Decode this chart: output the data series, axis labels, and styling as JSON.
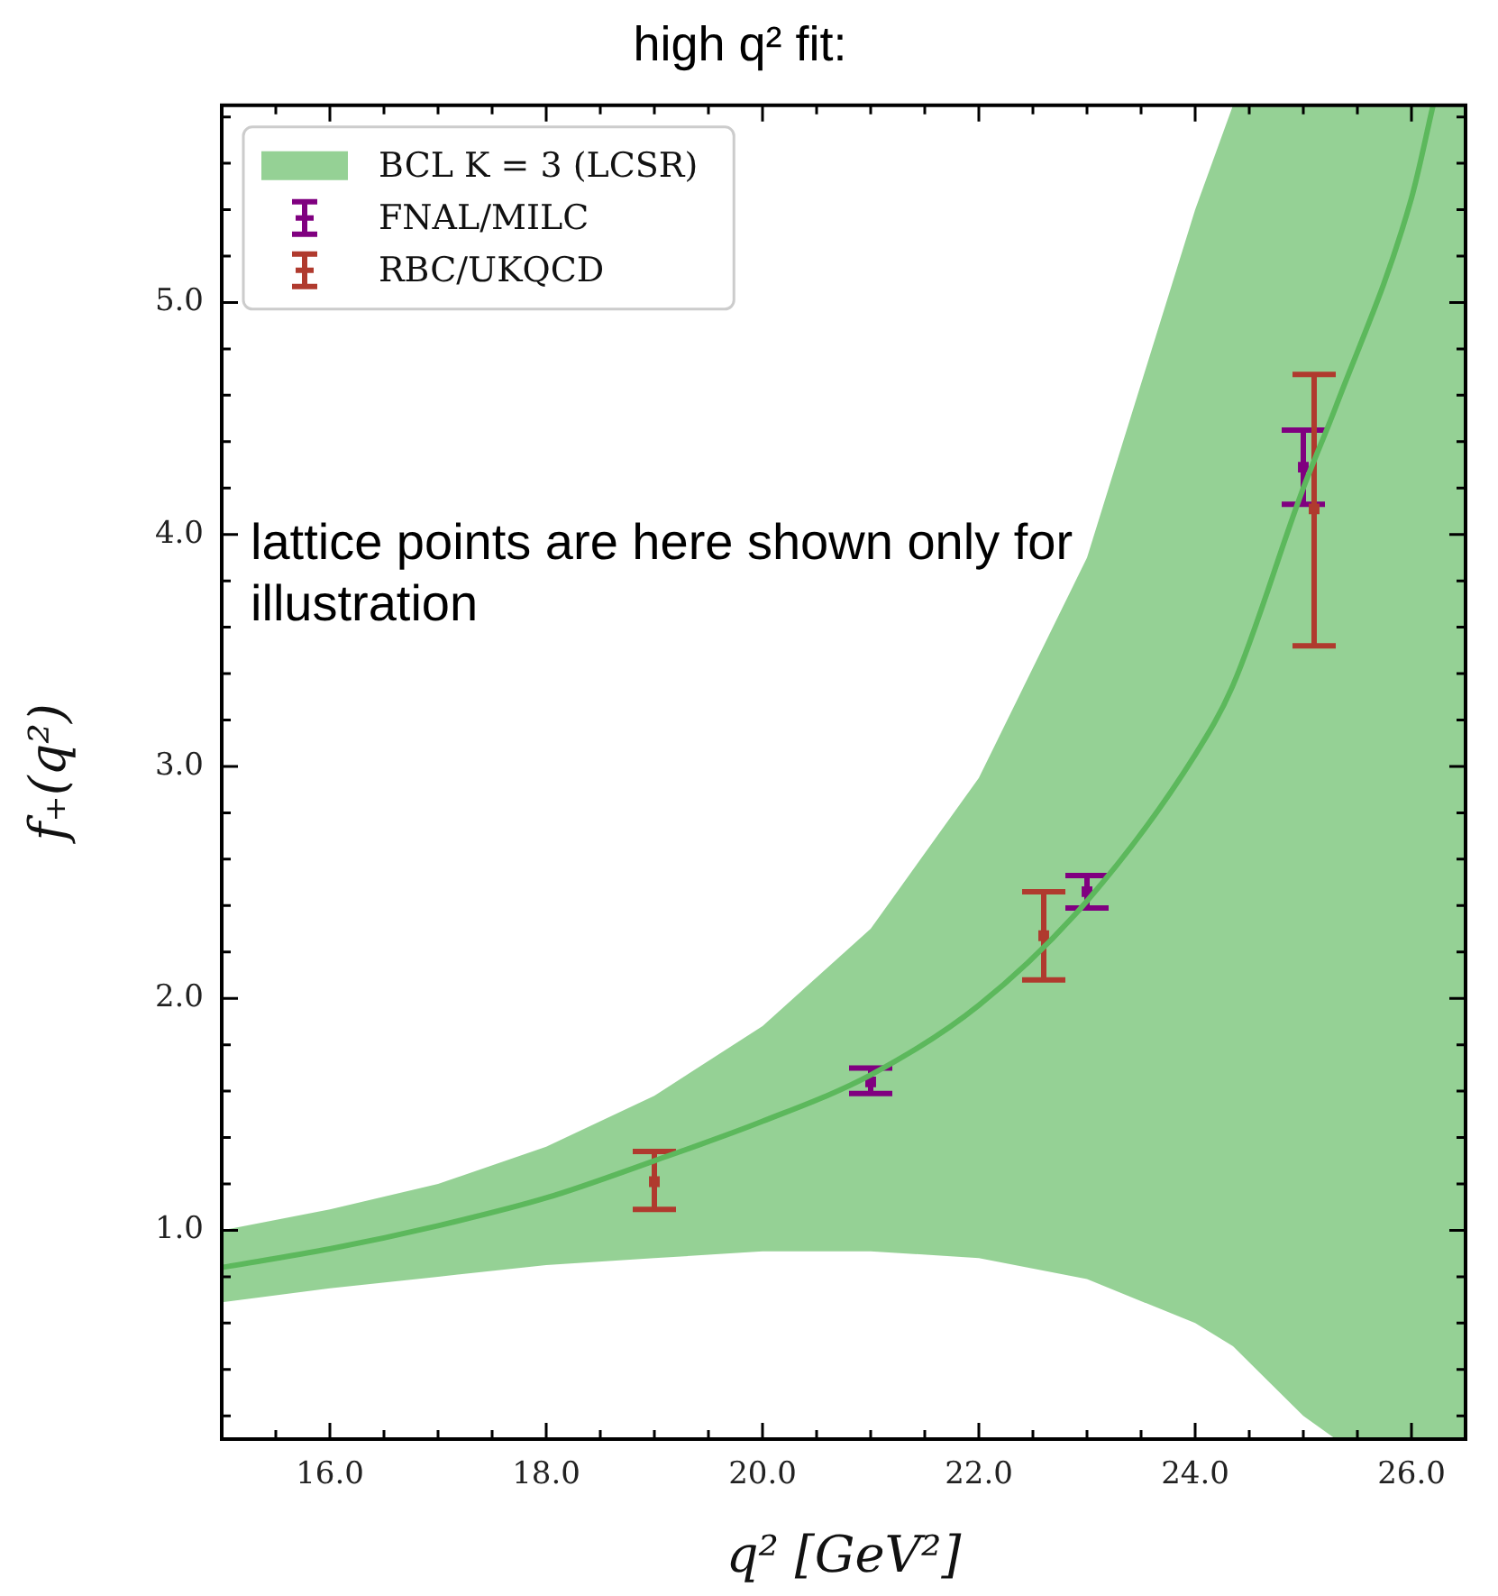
{
  "chart_data": {
    "type": "line",
    "title": "high q² fit:",
    "xlabel": "q² [GeV²]",
    "ylabel": "f₊(q²)",
    "xlim": [
      15.0,
      26.5
    ],
    "ylim": [
      0.1,
      5.85
    ],
    "xticks": [
      {
        "value": 15.5,
        "label": null
      },
      {
        "value": 16,
        "label": "16.0"
      },
      {
        "value": 16.5,
        "label": null
      },
      {
        "value": 17,
        "label": null
      },
      {
        "value": 17.5,
        "label": null
      },
      {
        "value": 18,
        "label": "18.0"
      },
      {
        "value": 18.5,
        "label": null
      },
      {
        "value": 19,
        "label": null
      },
      {
        "value": 19.5,
        "label": null
      },
      {
        "value": 20,
        "label": "20.0"
      },
      {
        "value": 20.5,
        "label": null
      },
      {
        "value": 21,
        "label": null
      },
      {
        "value": 21.5,
        "label": null
      },
      {
        "value": 22,
        "label": "22.0"
      },
      {
        "value": 22.5,
        "label": null
      },
      {
        "value": 23,
        "label": null
      },
      {
        "value": 23.5,
        "label": null
      },
      {
        "value": 24,
        "label": "24.0"
      },
      {
        "value": 24.5,
        "label": null
      },
      {
        "value": 25,
        "label": null
      },
      {
        "value": 25.5,
        "label": null
      },
      {
        "value": 26,
        "label": "26.0"
      }
    ],
    "yticks": [
      {
        "value": 0.2,
        "label": null
      },
      {
        "value": 0.4,
        "label": null
      },
      {
        "value": 0.6,
        "label": null
      },
      {
        "value": 0.8,
        "label": null
      },
      {
        "value": 1,
        "label": "1.0"
      },
      {
        "value": 1.2,
        "label": null
      },
      {
        "value": 1.4,
        "label": null
      },
      {
        "value": 1.6,
        "label": null
      },
      {
        "value": 1.8,
        "label": null
      },
      {
        "value": 2,
        "label": "2.0"
      },
      {
        "value": 2.2,
        "label": null
      },
      {
        "value": 2.4,
        "label": null
      },
      {
        "value": 2.6,
        "label": null
      },
      {
        "value": 2.8,
        "label": null
      },
      {
        "value": 3,
        "label": "3.0"
      },
      {
        "value": 3.2,
        "label": null
      },
      {
        "value": 3.4,
        "label": null
      },
      {
        "value": 3.6,
        "label": null
      },
      {
        "value": 3.8,
        "label": null
      },
      {
        "value": 4,
        "label": "4.0"
      },
      {
        "value": 4.2,
        "label": null
      },
      {
        "value": 4.4,
        "label": null
      },
      {
        "value": 4.6,
        "label": null
      },
      {
        "value": 4.8,
        "label": null
      },
      {
        "value": 5,
        "label": "5.0"
      },
      {
        "value": 5.2,
        "label": null
      },
      {
        "value": 5.4,
        "label": null
      },
      {
        "value": 5.6,
        "label": null
      },
      {
        "value": 5.8,
        "label": null
      }
    ],
    "grid": false,
    "legend": "top left",
    "annotations": [
      "lattice points are here shown only for illustration"
    ],
    "series": [
      {
        "name": "BCL K = 3 (LCSR)",
        "color": "#5cb85c",
        "x": [
          15,
          16,
          17,
          18,
          19,
          20,
          21,
          22,
          23,
          24,
          24.35,
          25,
          25.3,
          26,
          26.2,
          26.5
        ],
        "values": [
          0.84,
          0.92,
          1.02,
          1.14,
          1.3,
          1.47,
          1.67,
          1.97,
          2.42,
          3.05,
          3.35,
          4.2,
          4.55,
          5.45,
          5.85,
          null
        ],
        "lower": [
          0.69,
          0.75,
          0.8,
          0.85,
          0.88,
          0.91,
          0.91,
          0.88,
          0.79,
          0.6,
          0.5,
          0.2,
          0.1,
          0.1,
          0.1,
          0.1
        ],
        "upper": [
          1.0,
          1.09,
          1.2,
          1.36,
          1.58,
          1.88,
          2.3,
          2.95,
          3.9,
          5.4,
          5.85,
          5.85,
          5.85,
          5.85,
          5.85,
          5.85
        ]
      },
      {
        "type": "scatter",
        "name": "FNAL/MILC",
        "color": "#800080",
        "x": [
          21,
          23,
          25
        ],
        "values": [
          1.64,
          2.46,
          4.29
        ],
        "errors": [
          [
            1.59,
            1.7
          ],
          [
            2.39,
            2.53
          ],
          [
            4.13,
            4.45
          ]
        ]
      },
      {
        "type": "scatter",
        "name": "RBC/UKQCD",
        "color": "#b03a2e",
        "x": [
          19,
          22.6,
          25.1
        ],
        "values": [
          1.21,
          2.27,
          4.11
        ],
        "errors": [
          [
            1.09,
            1.34
          ],
          [
            2.08,
            2.46
          ],
          [
            3.52,
            4.69
          ]
        ]
      }
    ]
  }
}
